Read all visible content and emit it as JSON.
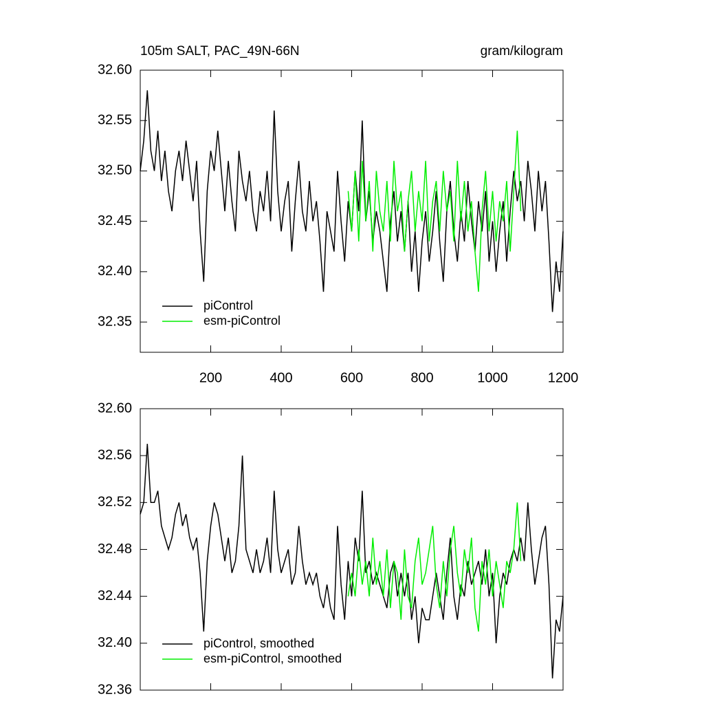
{
  "chart_data": [
    {
      "type": "line",
      "title": "105m SALT, PAC_49N-66N",
      "units": "gram/kilogram",
      "xlim": [
        0,
        1200
      ],
      "xticks": [
        200,
        400,
        600,
        800,
        1000,
        1200
      ],
      "xtick_labels": true,
      "ylim": [
        32.32,
        32.6
      ],
      "yticks": [
        {
          "value": 32.35,
          "label": "32.35"
        },
        {
          "value": 32.4,
          "label": "32.40"
        },
        32.45,
        {
          "value": 32.5,
          "label": "32.50"
        },
        32.55,
        {
          "value": 32.6,
          "label": "32.60"
        }
      ],
      "legend": "lower left",
      "x": [
        0,
        10,
        20,
        30,
        40,
        50,
        60,
        70,
        80,
        90,
        100,
        110,
        120,
        130,
        140,
        150,
        160,
        170,
        180,
        190,
        200,
        210,
        220,
        230,
        240,
        250,
        260,
        270,
        280,
        290,
        300,
        310,
        320,
        330,
        340,
        350,
        360,
        370,
        380,
        390,
        400,
        410,
        420,
        430,
        440,
        450,
        460,
        470,
        480,
        490,
        500,
        510,
        520,
        530,
        540,
        550,
        560,
        570,
        580,
        590,
        600,
        610,
        620,
        630,
        640,
        650,
        660,
        670,
        680,
        690,
        700,
        710,
        720,
        730,
        740,
        750,
        760,
        770,
        780,
        790,
        800,
        810,
        820,
        830,
        840,
        850,
        860,
        870,
        880,
        890,
        900,
        910,
        920,
        930,
        940,
        950,
        960,
        970,
        980,
        990,
        1000,
        1010,
        1020,
        1030,
        1040,
        1050,
        1060,
        1070,
        1080,
        1090,
        1100,
        1110,
        1120,
        1130,
        1140,
        1150,
        1160,
        1170,
        1180,
        1190,
        1200
      ],
      "series": [
        {
          "name": "piControl",
          "color": "#000000",
          "values": [
            32.5,
            32.53,
            32.58,
            32.52,
            32.5,
            32.54,
            32.49,
            32.52,
            32.48,
            32.46,
            32.5,
            32.52,
            32.49,
            32.53,
            32.5,
            32.47,
            32.51,
            32.44,
            32.39,
            32.48,
            32.52,
            32.5,
            32.54,
            32.5,
            32.46,
            32.51,
            32.47,
            32.44,
            32.52,
            32.49,
            32.47,
            32.5,
            32.46,
            32.44,
            32.48,
            32.46,
            32.5,
            32.45,
            32.56,
            32.48,
            32.44,
            32.47,
            32.49,
            32.42,
            32.47,
            32.51,
            32.46,
            32.44,
            32.49,
            32.45,
            32.47,
            32.43,
            32.38,
            32.46,
            32.44,
            32.42,
            32.5,
            32.45,
            32.41,
            32.47,
            32.44,
            32.5,
            32.46,
            32.55,
            32.45,
            32.48,
            32.43,
            32.46,
            32.44,
            32.41,
            32.38,
            32.45,
            32.48,
            32.43,
            32.46,
            32.42,
            32.47,
            32.4,
            32.44,
            32.38,
            32.43,
            32.46,
            32.41,
            32.44,
            32.48,
            32.43,
            32.39,
            32.46,
            32.49,
            32.44,
            32.41,
            32.46,
            32.43,
            32.49,
            32.45,
            32.42,
            32.47,
            32.44,
            32.48,
            32.41,
            32.45,
            32.4,
            32.44,
            32.47,
            32.41,
            32.46,
            32.5,
            32.47,
            32.49,
            32.45,
            32.51,
            32.48,
            32.44,
            32.5,
            32.46,
            32.49,
            32.43,
            32.36,
            32.41,
            32.38,
            32.44
          ]
        },
        {
          "name": "esm-piControl",
          "color": "#00ee00",
          "values": [
            null,
            null,
            null,
            null,
            null,
            null,
            null,
            null,
            null,
            null,
            null,
            null,
            null,
            null,
            null,
            null,
            null,
            null,
            null,
            null,
            null,
            null,
            null,
            null,
            null,
            null,
            null,
            null,
            null,
            null,
            null,
            null,
            null,
            null,
            null,
            null,
            null,
            null,
            null,
            null,
            null,
            null,
            null,
            null,
            null,
            null,
            null,
            null,
            null,
            null,
            null,
            null,
            null,
            null,
            null,
            null,
            null,
            null,
            null,
            32.48,
            32.44,
            32.5,
            32.43,
            32.51,
            32.45,
            32.49,
            32.42,
            32.5,
            32.46,
            32.44,
            32.49,
            32.43,
            32.51,
            32.46,
            32.48,
            32.42,
            32.47,
            32.5,
            32.44,
            32.48,
            32.45,
            32.51,
            32.43,
            32.47,
            32.49,
            32.44,
            32.5,
            32.46,
            32.48,
            32.43,
            32.51,
            32.45,
            32.49,
            32.44,
            32.47,
            32.42,
            32.38,
            32.46,
            32.5,
            32.44,
            32.48,
            32.43,
            32.47,
            32.45,
            32.49,
            32.42,
            32.48,
            32.54,
            32.46,
            null,
            null,
            null,
            null,
            null,
            null,
            null,
            null,
            null,
            null,
            null,
            null
          ]
        }
      ]
    },
    {
      "type": "line",
      "xlim": [
        0,
        1200
      ],
      "xticks": [
        200,
        400,
        600,
        800,
        1000,
        1200
      ],
      "xtick_labels": false,
      "ylim": [
        32.36,
        32.6
      ],
      "yticks": [
        32.36,
        {
          "value": 32.4,
          "label": "32.40"
        },
        32.44,
        32.48,
        32.52,
        32.56,
        {
          "value": 32.6,
          "label": "32.60"
        }
      ],
      "legend": "lower left",
      "x": [
        0,
        10,
        20,
        30,
        40,
        50,
        60,
        70,
        80,
        90,
        100,
        110,
        120,
        130,
        140,
        150,
        160,
        170,
        180,
        190,
        200,
        210,
        220,
        230,
        240,
        250,
        260,
        270,
        280,
        290,
        300,
        310,
        320,
        330,
        340,
        350,
        360,
        370,
        380,
        390,
        400,
        410,
        420,
        430,
        440,
        450,
        460,
        470,
        480,
        490,
        500,
        510,
        520,
        530,
        540,
        550,
        560,
        570,
        580,
        590,
        600,
        610,
        620,
        630,
        640,
        650,
        660,
        670,
        680,
        690,
        700,
        710,
        720,
        730,
        740,
        750,
        760,
        770,
        780,
        790,
        800,
        810,
        820,
        830,
        840,
        850,
        860,
        870,
        880,
        890,
        900,
        910,
        920,
        930,
        940,
        950,
        960,
        970,
        980,
        990,
        1000,
        1010,
        1020,
        1030,
        1040,
        1050,
        1060,
        1070,
        1080,
        1090,
        1100,
        1110,
        1120,
        1130,
        1140,
        1150,
        1160,
        1170,
        1180,
        1190,
        1200
      ],
      "series": [
        {
          "name": "piControl, smoothed",
          "color": "#000000",
          "values": [
            32.51,
            32.52,
            32.57,
            32.52,
            32.52,
            32.53,
            32.5,
            32.49,
            32.48,
            32.49,
            32.51,
            32.52,
            32.5,
            32.51,
            32.49,
            32.48,
            32.49,
            32.46,
            32.41,
            32.47,
            32.5,
            32.52,
            32.51,
            32.49,
            32.47,
            32.49,
            32.46,
            32.47,
            32.5,
            32.56,
            32.48,
            32.47,
            32.46,
            32.48,
            32.46,
            32.47,
            32.49,
            32.46,
            32.53,
            32.48,
            32.46,
            32.47,
            32.48,
            32.45,
            32.46,
            32.5,
            32.47,
            32.45,
            32.46,
            32.45,
            32.46,
            32.44,
            32.43,
            32.45,
            32.43,
            32.42,
            32.5,
            32.45,
            32.42,
            32.47,
            32.44,
            32.49,
            32.47,
            32.53,
            32.46,
            32.47,
            32.45,
            32.46,
            32.45,
            32.44,
            32.43,
            32.46,
            32.47,
            32.44,
            32.46,
            32.44,
            32.46,
            32.42,
            32.44,
            32.4,
            32.43,
            32.42,
            32.42,
            32.44,
            32.46,
            32.44,
            32.42,
            32.46,
            32.49,
            32.44,
            32.42,
            32.45,
            32.44,
            32.47,
            32.45,
            32.46,
            32.47,
            32.45,
            32.48,
            32.44,
            32.46,
            32.4,
            32.44,
            32.46,
            32.45,
            32.47,
            32.48,
            32.47,
            32.49,
            32.47,
            32.52,
            32.48,
            32.45,
            32.47,
            32.49,
            32.5,
            32.45,
            32.37,
            32.42,
            32.41,
            32.44
          ]
        },
        {
          "name": "esm-piControl, smoothed",
          "color": "#00ee00",
          "values": [
            null,
            null,
            null,
            null,
            null,
            null,
            null,
            null,
            null,
            null,
            null,
            null,
            null,
            null,
            null,
            null,
            null,
            null,
            null,
            null,
            null,
            null,
            null,
            null,
            null,
            null,
            null,
            null,
            null,
            null,
            null,
            null,
            null,
            null,
            null,
            null,
            null,
            null,
            null,
            null,
            null,
            null,
            null,
            null,
            null,
            null,
            null,
            null,
            null,
            null,
            null,
            null,
            null,
            null,
            null,
            null,
            null,
            null,
            null,
            32.44,
            32.46,
            32.44,
            32.48,
            32.45,
            32.47,
            32.44,
            32.49,
            32.45,
            32.47,
            32.44,
            32.48,
            32.43,
            32.47,
            32.46,
            32.42,
            32.48,
            32.44,
            32.43,
            32.47,
            32.49,
            32.45,
            32.46,
            32.48,
            32.5,
            32.45,
            32.43,
            32.47,
            32.44,
            32.48,
            32.5,
            32.46,
            32.44,
            32.48,
            32.46,
            32.49,
            32.43,
            32.41,
            32.47,
            32.45,
            32.48,
            32.44,
            32.47,
            32.45,
            32.43,
            32.47,
            32.46,
            32.48,
            32.52,
            32.47,
            null,
            null,
            null,
            null,
            null,
            null,
            null,
            null,
            null,
            null,
            null,
            null
          ]
        }
      ]
    }
  ]
}
